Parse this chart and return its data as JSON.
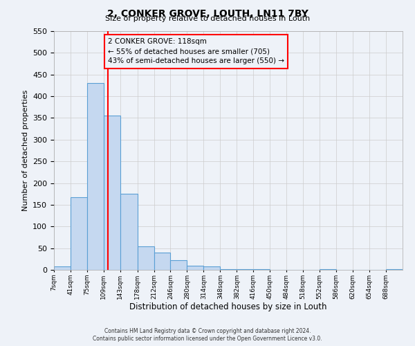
{
  "title": "2, CONKER GROVE, LOUTH, LN11 7BY",
  "subtitle": "Size of property relative to detached houses in Louth",
  "xlabel": "Distribution of detached houses by size in Louth",
  "ylabel": "Number of detached properties",
  "bin_labels": [
    "7sqm",
    "41sqm",
    "75sqm",
    "109sqm",
    "143sqm",
    "178sqm",
    "212sqm",
    "246sqm",
    "280sqm",
    "314sqm",
    "348sqm",
    "382sqm",
    "416sqm",
    "450sqm",
    "484sqm",
    "518sqm",
    "552sqm",
    "586sqm",
    "620sqm",
    "654sqm",
    "688sqm"
  ],
  "bin_edges": [
    7,
    41,
    75,
    109,
    143,
    178,
    212,
    246,
    280,
    314,
    348,
    382,
    416,
    450,
    484,
    518,
    552,
    586,
    620,
    654,
    688,
    722
  ],
  "bar_heights": [
    8,
    168,
    430,
    355,
    175,
    55,
    40,
    22,
    10,
    8,
    1,
    1,
    1,
    0,
    0,
    0,
    1,
    0,
    0,
    0,
    1
  ],
  "bar_color": "#c5d8f0",
  "bar_edge_color": "#5a9fd4",
  "grid_color": "#cccccc",
  "bg_color": "#eef2f8",
  "red_line_x": 118,
  "annotation_text_line1": "2 CONKER GROVE: 118sqm",
  "annotation_text_line2": "← 55% of detached houses are smaller (705)",
  "annotation_text_line3": "43% of semi-detached houses are larger (550) →",
  "annotation_box_color": "#ff0000",
  "ylim": [
    0,
    550
  ],
  "yticks": [
    0,
    50,
    100,
    150,
    200,
    250,
    300,
    350,
    400,
    450,
    500,
    550
  ],
  "footer_line1": "Contains HM Land Registry data © Crown copyright and database right 2024.",
  "footer_line2": "Contains public sector information licensed under the Open Government Licence v3.0."
}
